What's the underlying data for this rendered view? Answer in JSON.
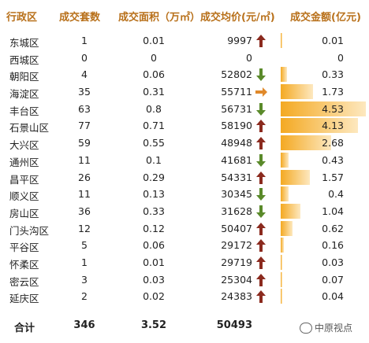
{
  "headers": {
    "district": "行政区",
    "count": "成交套数",
    "area": "成交面积（万㎡）",
    "price": "成交均价(元/㎡)",
    "amount": "成交金额(亿元)"
  },
  "rows": [
    {
      "district": "东城区",
      "count": "1",
      "area": "0.01",
      "price": "9997",
      "trend": "up",
      "amount": "0.01"
    },
    {
      "district": "西城区",
      "count": "0",
      "area": "0",
      "price": "0",
      "trend": "none",
      "amount": "0"
    },
    {
      "district": "朝阳区",
      "count": "4",
      "area": "0.06",
      "price": "52802",
      "trend": "down",
      "amount": "0.33"
    },
    {
      "district": "海淀区",
      "count": "35",
      "area": "0.31",
      "price": "55711",
      "trend": "flat",
      "amount": "1.73"
    },
    {
      "district": "丰台区",
      "count": "63",
      "area": "0.8",
      "price": "56731",
      "trend": "down",
      "amount": "4.53"
    },
    {
      "district": "石景山区",
      "count": "77",
      "area": "0.71",
      "price": "58190",
      "trend": "up",
      "amount": "4.13"
    },
    {
      "district": "大兴区",
      "count": "59",
      "area": "0.55",
      "price": "48948",
      "trend": "up",
      "amount": "2.68"
    },
    {
      "district": "通州区",
      "count": "11",
      "area": "0.1",
      "price": "41681",
      "trend": "down",
      "amount": "0.43"
    },
    {
      "district": "昌平区",
      "count": "26",
      "area": "0.29",
      "price": "54331",
      "trend": "up",
      "amount": "1.57"
    },
    {
      "district": "顺义区",
      "count": "11",
      "area": "0.13",
      "price": "30345",
      "trend": "down",
      "amount": "0.4"
    },
    {
      "district": "房山区",
      "count": "36",
      "area": "0.33",
      "price": "31628",
      "trend": "down",
      "amount": "1.04"
    },
    {
      "district": "门头沟区",
      "count": "12",
      "area": "0.12",
      "price": "50407",
      "trend": "up",
      "amount": "0.62"
    },
    {
      "district": "平谷区",
      "count": "5",
      "area": "0.06",
      "price": "29172",
      "trend": "up",
      "amount": "0.16"
    },
    {
      "district": "怀柔区",
      "count": "1",
      "area": "0.01",
      "price": "29719",
      "trend": "up",
      "amount": "0.03"
    },
    {
      "district": "密云区",
      "count": "3",
      "area": "0.03",
      "price": "25304",
      "trend": "up",
      "amount": "0.07"
    },
    {
      "district": "延庆区",
      "count": "2",
      "area": "0.02",
      "price": "24383",
      "trend": "up",
      "amount": "0.04"
    }
  ],
  "total": {
    "label": "合计",
    "count": "346",
    "area": "3.52",
    "price": "50493"
  },
  "watermark": "中原视点",
  "colors": {
    "header": "#b8701a",
    "up": "#8b2a1e",
    "down": "#5a8a2a",
    "flat": "#e0892a",
    "bar": "#f4a922"
  },
  "bar_max_amount": 4.53
}
